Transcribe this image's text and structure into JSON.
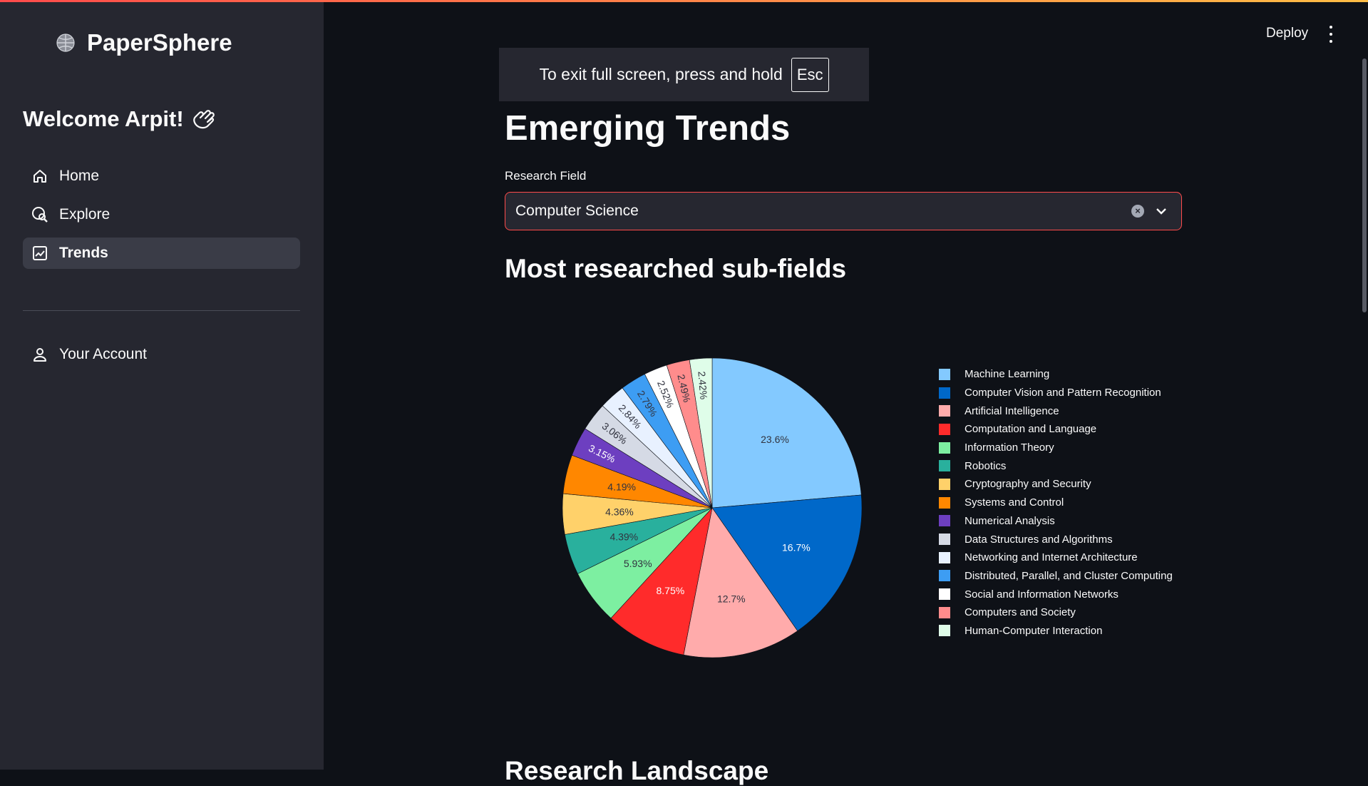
{
  "app": {
    "name": "PaperSphere"
  },
  "sidebar": {
    "welcome": "Welcome Arpit!",
    "items": [
      {
        "label": "Home",
        "icon": "home-icon"
      },
      {
        "label": "Explore",
        "icon": "explore-icon"
      },
      {
        "label": "Trends",
        "icon": "trends-icon",
        "active": true
      }
    ],
    "account": {
      "label": "Your Account",
      "icon": "user-icon"
    }
  },
  "header": {
    "deploy_label": "Deploy"
  },
  "toast": {
    "text": "To exit full screen, press and hold",
    "key": "Esc"
  },
  "page": {
    "title": "Emerging Trends",
    "field_label": "Research Field",
    "field_value": "Computer Science",
    "subtitle": "Most researched sub-fields",
    "next_heading": "Research Landscape"
  },
  "chart_data": {
    "type": "pie",
    "labels": [
      "Machine Learning",
      "Computer Vision and Pattern Recognition",
      "Artificial Intelligence",
      "Computation and Language",
      "Information Theory",
      "Robotics",
      "Cryptography and Security",
      "Systems and Control",
      "Numerical Analysis",
      "Data Structures and Algorithms",
      "Networking and Internet Architecture",
      "Distributed, Parallel, and Cluster Computing",
      "Social and Information Networks",
      "Computers and Society",
      "Human-Computer Interaction"
    ],
    "values": [
      23.6,
      16.7,
      12.7,
      8.75,
      5.93,
      4.39,
      4.36,
      4.19,
      3.15,
      3.06,
      2.84,
      2.79,
      2.52,
      2.49,
      2.42
    ],
    "value_labels": [
      "23.6%",
      "16.7%",
      "12.7%",
      "8.75%",
      "5.93%",
      "4.39%",
      "4.36%",
      "4.19%",
      "3.15%",
      "3.06%",
      "2.84%",
      "2.79%",
      "2.52%",
      "2.49%",
      "2.42%"
    ],
    "colors": [
      "#83c9ff",
      "#0068c9",
      "#ffabab",
      "#ff2b2b",
      "#7defa1",
      "#29b09d",
      "#ffd16a",
      "#ff8700",
      "#6d3fc0",
      "#d5dae5",
      "#e8f1ff",
      "#3d9df3",
      "#ffffff",
      "#ff8c8c",
      "#dffde9"
    ],
    "label_colors": [
      "#31333f",
      "#ffffff",
      "#31333f",
      "#ffffff",
      "#31333f",
      "#31333f",
      "#31333f",
      "#31333f",
      "#ffffff",
      "#31333f",
      "#31333f",
      "#31333f",
      "#31333f",
      "#31333f",
      "#31333f"
    ],
    "legend_position": "right",
    "direction": "clockwise"
  }
}
